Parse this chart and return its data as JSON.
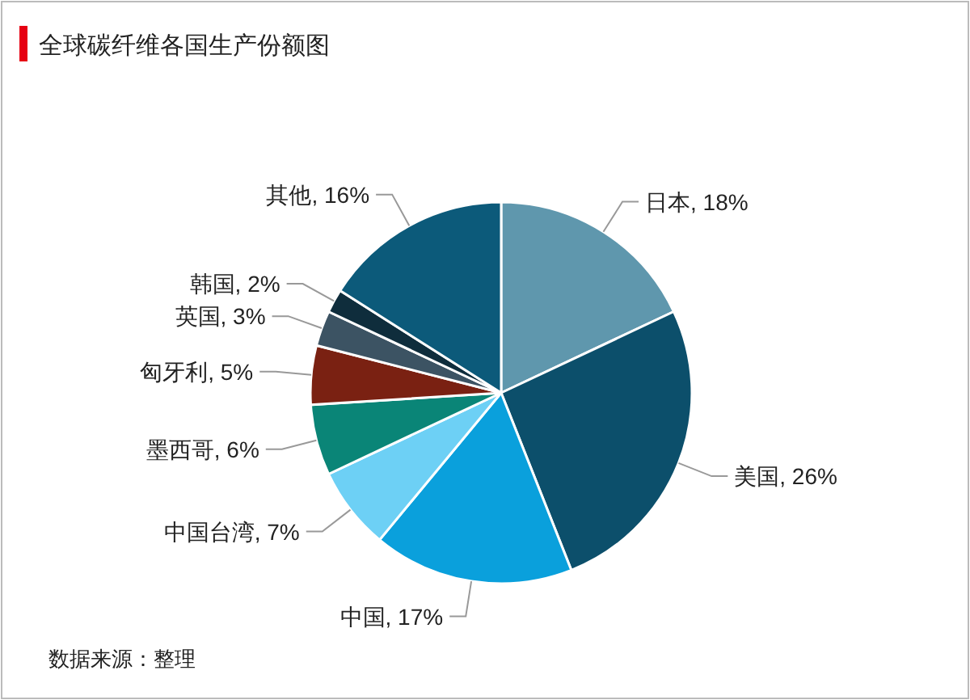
{
  "chart_data": {
    "type": "pie",
    "title": "全球碳纤维各国生产份额图",
    "categories": [
      "日本",
      "美国",
      "中国",
      "中国台湾",
      "墨西哥",
      "匈牙利",
      "英国",
      "韩国",
      "其他"
    ],
    "values": [
      18,
      26,
      17,
      7,
      6,
      5,
      3,
      2,
      16
    ],
    "value_labels": [
      "18%",
      "26%",
      "17%",
      "7%",
      "6%",
      "5%",
      "3%",
      "2%",
      "16%"
    ],
    "colors": [
      "#5f97ad",
      "#0c4f6b",
      "#0aa0dc",
      "#6dd0f5",
      "#0a8577",
      "#7a2112",
      "#3c5363",
      "#0f2d3c",
      "#0c5a7a"
    ],
    "annotations": [
      "数据来源：整理"
    ]
  }
}
